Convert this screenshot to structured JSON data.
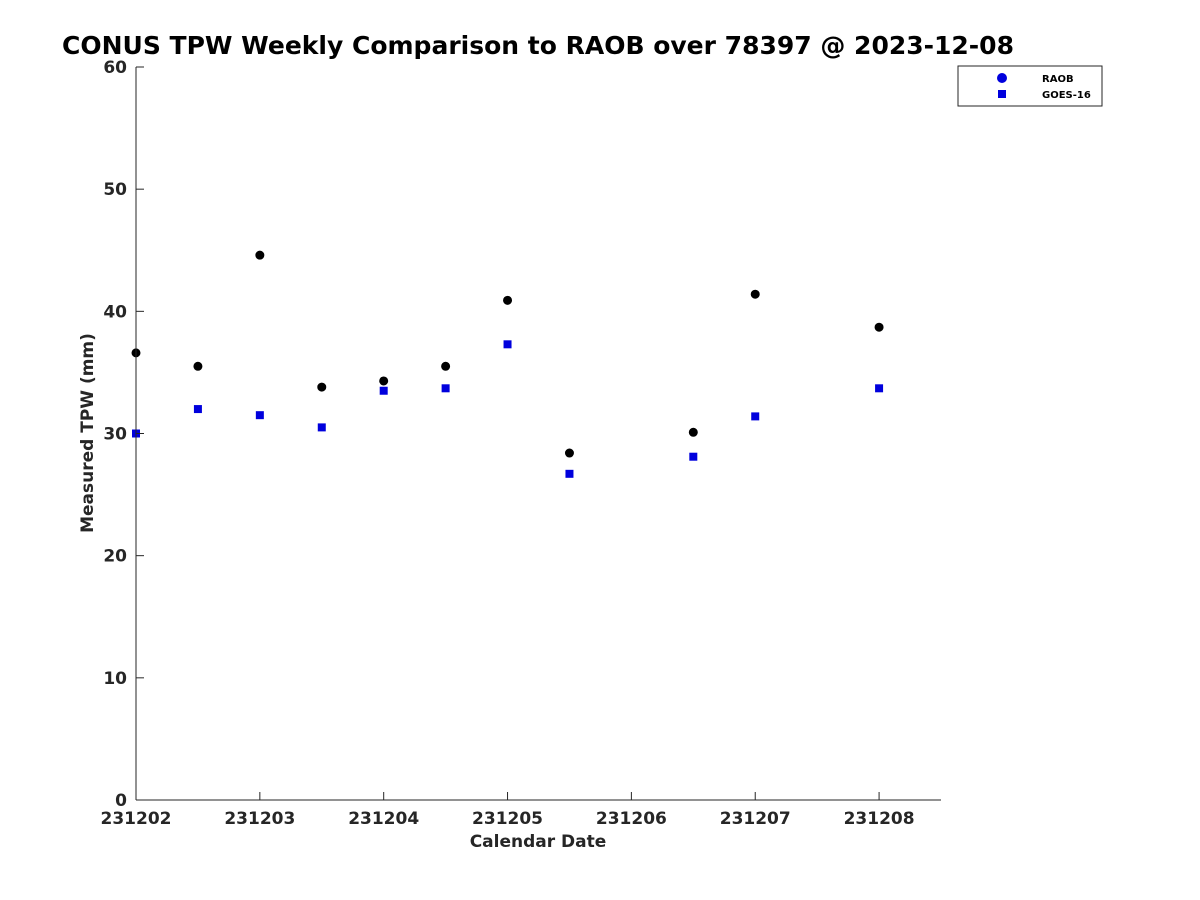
{
  "chart_data": {
    "type": "scatter",
    "title": "CONUS TPW Weekly Comparison to RAOB over 78397 @ 2023-12-08",
    "xlabel": "Calendar Date",
    "ylabel": "Measured TPW (mm)",
    "xlim": [
      "2023-12-02 00:00",
      "2023-12-08 12:00"
    ],
    "ylim": [
      0,
      60
    ],
    "x_ticks": [
      "231202",
      "231203",
      "231204",
      "231205",
      "231206",
      "231207",
      "231208"
    ],
    "y_ticks": [
      0,
      10,
      20,
      30,
      40,
      50,
      60
    ],
    "grid": false,
    "legend_position": "top-right",
    "series": [
      {
        "name": "RAOB",
        "marker": "circle",
        "color": "#000000",
        "legend_color": "#0000dd",
        "points": [
          {
            "x": "2023-12-02 00:00",
            "y": 36.6
          },
          {
            "x": "2023-12-02 12:00",
            "y": 35.5
          },
          {
            "x": "2023-12-03 00:00",
            "y": 44.6
          },
          {
            "x": "2023-12-03 12:00",
            "y": 33.8
          },
          {
            "x": "2023-12-04 00:00",
            "y": 34.3
          },
          {
            "x": "2023-12-04 12:00",
            "y": 35.5
          },
          {
            "x": "2023-12-05 00:00",
            "y": 40.9
          },
          {
            "x": "2023-12-05 12:00",
            "y": 28.4
          },
          {
            "x": "2023-12-06 12:00",
            "y": 30.1
          },
          {
            "x": "2023-12-07 00:00",
            "y": 41.4
          },
          {
            "x": "2023-12-08 00:00",
            "y": 38.7
          }
        ]
      },
      {
        "name": "GOES-16",
        "marker": "square",
        "color": "#0000dd",
        "points": [
          {
            "x": "2023-12-02 00:00",
            "y": 30.0
          },
          {
            "x": "2023-12-02 12:00",
            "y": 32.0
          },
          {
            "x": "2023-12-03 00:00",
            "y": 31.5
          },
          {
            "x": "2023-12-03 12:00",
            "y": 30.5
          },
          {
            "x": "2023-12-04 00:00",
            "y": 33.5
          },
          {
            "x": "2023-12-04 12:00",
            "y": 33.7
          },
          {
            "x": "2023-12-05 00:00",
            "y": 37.3
          },
          {
            "x": "2023-12-05 12:00",
            "y": 26.7
          },
          {
            "x": "2023-12-06 12:00",
            "y": 28.1
          },
          {
            "x": "2023-12-07 00:00",
            "y": 31.4
          },
          {
            "x": "2023-12-08 00:00",
            "y": 33.7
          }
        ]
      }
    ]
  }
}
